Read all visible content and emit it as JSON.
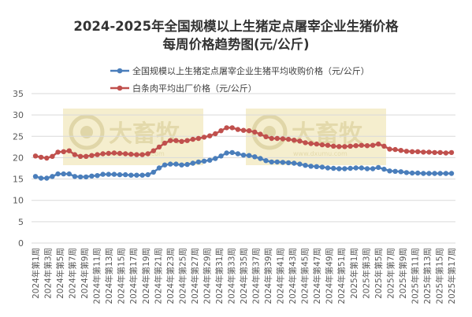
{
  "title_line1": "2024-2025年全国规模以上生猪定点屠宰企业生猪价格",
  "title_line2": "每周价格趋势图(元/公斤)",
  "watermark": {
    "main": "大畜牧",
    "sub": "www.dxumu.com"
  },
  "colors": {
    "series1": "#4A7EBB",
    "series2": "#C0504D",
    "grid": "#D9D9D9",
    "axis_text": "#595959",
    "watermark_bg": "#F3EBC6"
  },
  "chart_data": {
    "type": "line",
    "title": "2024-2025年全国规模以上生猪定点屠宰企业生猪价格每周价格趋势图(元/公斤)",
    "ylim": [
      0,
      35
    ],
    "yticks": [
      0,
      5,
      10,
      15,
      20,
      25,
      30,
      35
    ],
    "grid": true,
    "legend_position": "top",
    "x_labels": [
      "2024年第1周",
      "2024年第3周",
      "2024年第5周",
      "2024年第7周",
      "2024年第9周",
      "2024年第11周",
      "2024年第13周",
      "2024年第15周",
      "2024年第17周",
      "2024年第19周",
      "2024年第21周",
      "2024年第23周",
      "2024年第25周",
      "2024年第27周",
      "2024年第29周",
      "2024年第31周",
      "2024年第33周",
      "2024年第35周",
      "2024年第37周",
      "2024年第39周",
      "2024年第41周",
      "2024年第43周",
      "2024年第45周",
      "2024年第47周",
      "2024年第49周",
      "2024年第51周",
      "2025年第1周",
      "2025年第3周",
      "2025年第5周",
      "2025年第7周",
      "2025年第9周",
      "2025年第11周",
      "2025年第13周",
      "2025年第15周",
      "2025年第17周"
    ],
    "series": [
      {
        "name": "全国规模以上生猪定点屠宰企业生猪平均收购价格（元/公斤）",
        "values": [
          15.6,
          15.2,
          15.2,
          15.6,
          16.2,
          16.2,
          16.2,
          15.6,
          15.5,
          15.5,
          15.7,
          15.8,
          16.1,
          16.1,
          16.1,
          16.0,
          16.0,
          15.9,
          15.9,
          15.9,
          16.0,
          16.6,
          17.6,
          18.3,
          18.5,
          18.5,
          18.3,
          18.4,
          18.7,
          19.0,
          19.2,
          19.4,
          19.8,
          20.4,
          21.1,
          21.2,
          20.9,
          20.6,
          20.5,
          20.2,
          19.8,
          19.3,
          19.0,
          19.0,
          18.9,
          18.8,
          18.7,
          18.5,
          18.2,
          18.0,
          17.9,
          17.8,
          17.6,
          17.5,
          17.4,
          17.4,
          17.5,
          17.6,
          17.6,
          17.4,
          17.4,
          17.7,
          17.3,
          16.9,
          16.8,
          16.7,
          16.5,
          16.4,
          16.4,
          16.3,
          16.3,
          16.3,
          16.3,
          16.3,
          16.3
        ]
      },
      {
        "name": "白条肉平均出厂价格（元/公斤）",
        "values": [
          20.4,
          20.1,
          19.9,
          20.3,
          21.3,
          21.4,
          21.6,
          20.7,
          20.3,
          20.3,
          20.5,
          20.7,
          20.9,
          21.0,
          21.1,
          21.0,
          20.9,
          20.8,
          20.7,
          20.7,
          20.9,
          21.6,
          22.5,
          23.4,
          24.0,
          24.0,
          23.8,
          24.0,
          24.3,
          24.5,
          24.8,
          25.1,
          25.6,
          26.3,
          27.0,
          27.0,
          26.6,
          26.4,
          26.3,
          26.0,
          25.5,
          24.9,
          24.5,
          24.5,
          24.4,
          24.3,
          24.1,
          23.9,
          23.5,
          23.3,
          23.2,
          23.0,
          22.9,
          22.7,
          22.6,
          22.6,
          22.7,
          22.8,
          22.9,
          22.8,
          22.9,
          23.2,
          22.7,
          22.0,
          21.9,
          21.7,
          21.5,
          21.4,
          21.4,
          21.3,
          21.3,
          21.2,
          21.2,
          21.1,
          21.2
        ]
      }
    ]
  }
}
